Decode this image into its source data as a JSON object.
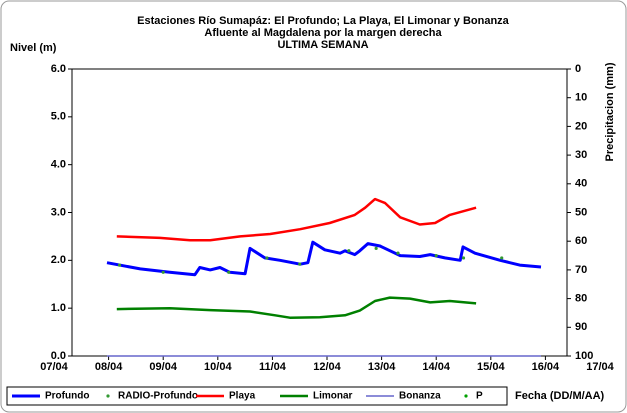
{
  "chart_data": {
    "type": "line",
    "title": [
      "Estaciones Río Sumapáz: El Profundo; La Playa, El Limonar y Bonanza",
      "Afluente al Magdalena por la margen derecha",
      "ULTIMA SEMANA"
    ],
    "y_label": "Nivel (m)",
    "y2_label": "Precipitacion (mm)",
    "x_label": "Fecha (DD/M/AA)",
    "xlim": [
      7,
      17
    ],
    "xticks": [
      {
        "value": 7,
        "label": "07/04"
      },
      {
        "value": 8,
        "label": "08/04"
      },
      {
        "value": 9,
        "label": "09/04"
      },
      {
        "value": 10,
        "label": "10/04"
      },
      {
        "value": 11,
        "label": "11/04"
      },
      {
        "value": 12,
        "label": "12/04"
      },
      {
        "value": 13,
        "label": "13/04"
      },
      {
        "value": 14,
        "label": "14/04"
      },
      {
        "value": 15,
        "label": "15/04"
      },
      {
        "value": 16,
        "label": "16/04"
      },
      {
        "value": 17,
        "label": "17/04"
      }
    ],
    "ylim": [
      0,
      6
    ],
    "yticks": [
      {
        "value": 0,
        "label": "0.0"
      },
      {
        "value": 1,
        "label": "1.0"
      },
      {
        "value": 2,
        "label": "2.0"
      },
      {
        "value": 3,
        "label": "3.0"
      },
      {
        "value": 4,
        "label": "4.0"
      },
      {
        "value": 5,
        "label": "5.0"
      },
      {
        "value": 6,
        "label": "6.0"
      }
    ],
    "y2lim": [
      0,
      100
    ],
    "y2_inverted": true,
    "y2ticks": [
      0,
      10,
      20,
      30,
      40,
      50,
      60,
      70,
      80,
      90,
      100
    ],
    "grid": false,
    "legend": "bottom",
    "series": [
      {
        "name": "Profundo",
        "color": "#0000ff",
        "kind": "line",
        "width": 3,
        "x": [
          7.97,
          8.58,
          9.12,
          9.58,
          9.67,
          9.86,
          10.04,
          10.22,
          10.5,
          10.59,
          10.86,
          11.14,
          11.51,
          11.65,
          11.74,
          11.96,
          12.24,
          12.33,
          12.51,
          12.6,
          12.75,
          12.97,
          13.34,
          13.7,
          13.89,
          14.16,
          14.44,
          14.49,
          14.71,
          15.17,
          15.53,
          15.92
        ],
        "values": [
          1.95,
          1.82,
          1.75,
          1.7,
          1.85,
          1.8,
          1.85,
          1.75,
          1.72,
          2.25,
          2.05,
          2.0,
          1.92,
          1.95,
          2.38,
          2.22,
          2.15,
          2.2,
          2.12,
          2.2,
          2.35,
          2.3,
          2.1,
          2.08,
          2.12,
          2.05,
          2.0,
          2.28,
          2.15,
          2.0,
          1.9,
          1.86
        ]
      },
      {
        "name": "RADIO-Profundo",
        "color": "#339933",
        "kind": "points",
        "x": [
          8.2,
          9.0,
          10.2,
          10.9,
          11.5,
          12.4,
          12.9,
          13.3,
          14.0,
          14.5,
          15.2
        ],
        "values": [
          1.9,
          1.75,
          1.75,
          2.05,
          1.92,
          2.2,
          2.25,
          2.15,
          2.1,
          2.05,
          2.05
        ]
      },
      {
        "name": "Playa",
        "color": "#ff0000",
        "kind": "line",
        "width": 2.5,
        "x": [
          8.15,
          8.94,
          9.49,
          9.86,
          10.41,
          10.96,
          11.51,
          12.05,
          12.51,
          12.7,
          12.88,
          13.06,
          13.34,
          13.7,
          13.98,
          14.25,
          14.73
        ],
        "values": [
          2.5,
          2.47,
          2.42,
          2.42,
          2.5,
          2.55,
          2.65,
          2.78,
          2.95,
          3.1,
          3.28,
          3.2,
          2.9,
          2.75,
          2.78,
          2.95,
          3.1
        ]
      },
      {
        "name": "Limonar",
        "color": "#008000",
        "kind": "line",
        "width": 2.5,
        "x": [
          8.15,
          9.12,
          9.86,
          10.59,
          11.05,
          11.32,
          11.87,
          12.33,
          12.6,
          12.88,
          13.15,
          13.52,
          13.89,
          14.25,
          14.73
        ],
        "values": [
          0.98,
          1.0,
          0.96,
          0.93,
          0.85,
          0.8,
          0.81,
          0.85,
          0.95,
          1.15,
          1.22,
          1.2,
          1.12,
          1.15,
          1.1
        ]
      },
      {
        "name": "Bonanza",
        "color": "#6666cc",
        "kind": "line",
        "width": 1.5,
        "x": [
          7.97,
          15.92
        ],
        "values": [
          0,
          0
        ]
      },
      {
        "name": "P",
        "color": "#00a000",
        "kind": "points",
        "axis": "y2",
        "x": [],
        "values": []
      }
    ]
  }
}
